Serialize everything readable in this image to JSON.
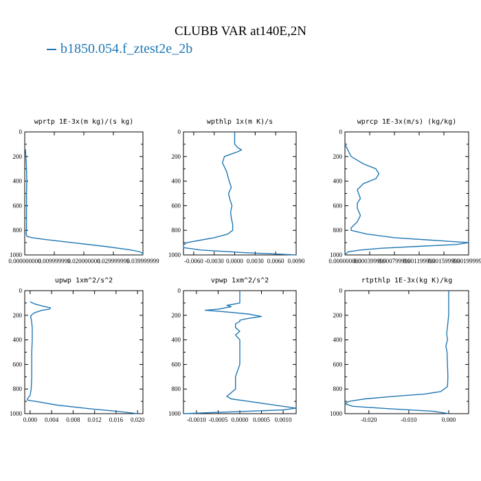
{
  "figure": {
    "title": "CLUBB VAR at140E,2N",
    "legend_label": "b1850.054.f_ztest2e_2b",
    "series_color": "#1f77b4"
  },
  "chart_data": [
    {
      "type": "line",
      "title": "wprtp   1E-3x(m kg)/(s kg)",
      "xlim": [
        0.0,
        0.04
      ],
      "ylim": [
        1000,
        0
      ],
      "xticks": [
        0.0,
        0.01,
        0.02,
        0.03,
        0.04
      ],
      "xtick_labels": [
        "0.000000000",
        "0.009999999",
        "0.020000000",
        "0.029999999",
        "0.039999999"
      ],
      "yticks": [
        0,
        200,
        400,
        600,
        800,
        1000
      ],
      "series": [
        {
          "y": [
            140,
            200,
            300,
            400,
            500,
            600,
            700,
            780,
            830,
            850,
            860,
            875,
            900,
            930,
            960,
            975,
            990,
            1000
          ],
          "x": [
            0.0002,
            0.0004,
            0.0006,
            0.0007,
            0.0006,
            0.0006,
            0.0006,
            0.0006,
            0.0005,
            0.0008,
            0.0025,
            0.007,
            0.016,
            0.027,
            0.036,
            0.039,
            0.04,
            0.04
          ]
        }
      ]
    },
    {
      "type": "line",
      "title": "wpthlp   1x(m K)/s",
      "xlim": [
        -0.0075,
        0.009
      ],
      "ylim": [
        1000,
        0
      ],
      "xticks": [
        -0.006,
        -0.003,
        0.0,
        0.003,
        0.006,
        0.009
      ],
      "xtick_labels": [
        "-0.0060",
        "-0.0030",
        "0.0000",
        "0.0030",
        "0.0060",
        "0.0090"
      ],
      "yticks": [
        0,
        200,
        400,
        600,
        800,
        1000
      ],
      "series": [
        {
          "y": [
            0,
            100,
            130,
            145,
            160,
            180,
            200,
            250,
            320,
            400,
            450,
            500,
            550,
            600,
            650,
            700,
            750,
            800,
            830,
            860,
            880,
            900,
            920,
            940,
            960,
            980,
            995,
            1000
          ],
          "x": [
            0.0,
            0.0,
            0.0005,
            0.001,
            0.0005,
            -0.0005,
            -0.0015,
            -0.0018,
            -0.0012,
            -0.0008,
            -0.0005,
            -0.0009,
            -0.0007,
            -0.0004,
            -0.0006,
            -0.0005,
            -0.0003,
            -0.0003,
            -0.001,
            -0.003,
            -0.005,
            -0.007,
            -0.0075,
            -0.0075,
            -0.005,
            0.001,
            0.007,
            0.009
          ]
        }
      ]
    },
    {
      "type": "line",
      "title": "wprcp   1E-3x(m/s) (kg/kg)",
      "xlim": [
        0.0,
        0.002
      ],
      "ylim": [
        1000,
        0
      ],
      "xticks": [
        0.0,
        0.0004,
        0.0008,
        0.0012,
        0.0016,
        0.002
      ],
      "xtick_labels": [
        "0.000000000",
        "0.000399999",
        "0.000799999",
        "0.001199999",
        "0.001599999",
        "0.001999998"
      ],
      "yticks": [
        0,
        200,
        400,
        600,
        800,
        1000
      ],
      "series": [
        {
          "y": [
            100,
            150,
            200,
            260,
            300,
            340,
            380,
            420,
            470,
            500,
            540,
            580,
            620,
            680,
            730,
            780,
            800,
            830,
            860,
            880,
            900,
            915,
            930,
            945,
            960,
            975,
            1000
          ],
          "x": [
            0.0,
            5e-05,
            0.0001,
            0.0003,
            0.0005,
            0.00055,
            0.0005,
            0.0003,
            0.0002,
            0.00022,
            0.00025,
            0.0002,
            0.0002,
            0.00025,
            0.0002,
            0.0001,
            0.0001,
            0.00035,
            0.0008,
            0.0014,
            0.002,
            0.0018,
            0.0012,
            0.0006,
            0.00025,
            5e-05,
            0.0
          ]
        }
      ]
    },
    {
      "type": "line",
      "title": "upwp   1xm^2/s^2",
      "xlim": [
        -0.001,
        0.021
      ],
      "ylim": [
        1000,
        0
      ],
      "xticks": [
        0.0,
        0.004,
        0.008,
        0.012,
        0.016,
        0.02
      ],
      "xtick_labels": [
        "0.000",
        "0.004",
        "0.008",
        "0.012",
        "0.016",
        "0.020"
      ],
      "yticks": [
        0,
        200,
        400,
        600,
        800,
        1000
      ],
      "series": [
        {
          "y": [
            90,
            110,
            130,
            140,
            150,
            160,
            180,
            200,
            210,
            230,
            260,
            300,
            400,
            500,
            600,
            700,
            800,
            850,
            880,
            890,
            900,
            930,
            960,
            980,
            995,
            1000
          ],
          "x": [
            0.0,
            0.001,
            0.0028,
            0.0038,
            0.0036,
            0.0022,
            0.0008,
            0.0002,
            0.0001,
            0.0002,
            0.0003,
            0.0004,
            0.0004,
            0.0003,
            0.0003,
            0.0003,
            0.0002,
            0.0,
            -0.0005,
            -0.0005,
            0.001,
            0.005,
            0.011,
            0.016,
            0.019,
            0.02
          ]
        }
      ]
    },
    {
      "type": "line",
      "title": "vpwp   1xm^2/s^2",
      "xlim": [
        -0.0013,
        0.0013
      ],
      "ylim": [
        1000,
        0
      ],
      "xticks": [
        -0.001,
        -0.0005,
        0.0,
        0.0005,
        0.001
      ],
      "xtick_labels": [
        "-0.0010",
        "-0.0005",
        "0.0000",
        "0.0005",
        "0.0010"
      ],
      "yticks": [
        0,
        200,
        400,
        600,
        800,
        1000
      ],
      "series": [
        {
          "y": [
            0,
            100,
            120,
            130,
            150,
            160,
            170,
            190,
            210,
            225,
            240,
            250,
            270,
            300,
            330,
            360,
            400,
            500,
            600,
            700,
            800,
            860,
            880,
            900,
            920,
            940,
            955,
            970,
            1000
          ],
          "x": [
            0.0,
            0.0,
            -0.0003,
            -0.0002,
            -0.0005,
            -0.0008,
            -0.0004,
            0.0002,
            0.0005,
            0.0002,
            0.0,
            0.0,
            -0.0001,
            -0.0001,
            0.0,
            -0.0001,
            0.0,
            0.0,
            0.0,
            -0.0001,
            -0.0001,
            -0.0003,
            -0.0002,
            0.0002,
            0.0006,
            0.001,
            0.0013,
            0.001,
            -0.0013
          ]
        }
      ]
    },
    {
      "type": "line",
      "title": "rtpthlp   1E-3x(kg K)/kg",
      "xlim": [
        -0.026,
        0.005
      ],
      "ylim": [
        1000,
        0
      ],
      "xticks": [
        -0.02,
        -0.01,
        0.0
      ],
      "xtick_labels": [
        "-0.020",
        "-0.010",
        "0.000"
      ],
      "yticks": [
        0,
        200,
        400,
        600,
        800,
        1000
      ],
      "series": [
        {
          "y": [
            0,
            200,
            350,
            400,
            450,
            500,
            600,
            700,
            780,
            820,
            840,
            860,
            880,
            900,
            920,
            940,
            960,
            980,
            1000
          ],
          "x": [
            0.0,
            0.0,
            -0.0005,
            -0.0003,
            -0.0007,
            -0.0004,
            -0.0003,
            -0.0002,
            -0.0003,
            -0.002,
            -0.006,
            -0.014,
            -0.021,
            -0.025,
            -0.026,
            -0.024,
            -0.015,
            -0.004,
            0.0
          ]
        }
      ]
    }
  ]
}
